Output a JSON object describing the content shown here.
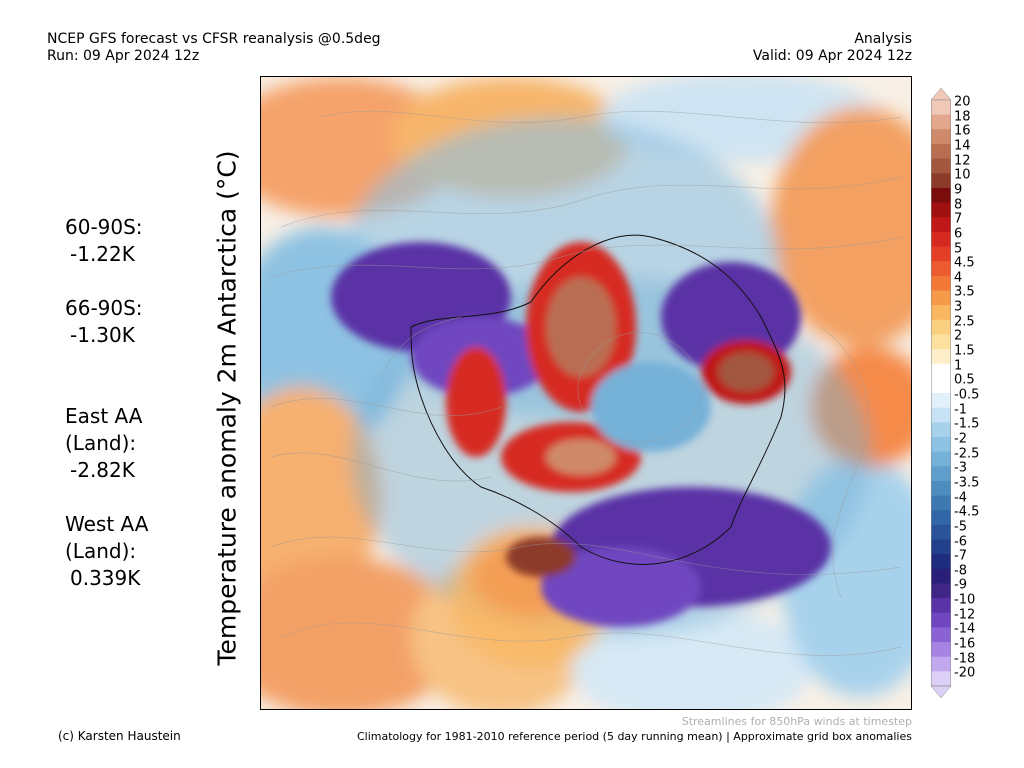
{
  "header": {
    "title": "NCEP GFS forecast vs CFSR reanalysis @0.5deg",
    "run": "Run: 09 Apr 2024 12z",
    "kind": "Analysis",
    "valid": "Valid: 09 Apr 2024 12z"
  },
  "vertical_title": "Temperature anomaly 2m Antarctica (°C)",
  "stats": [
    {
      "label": "60-90S:",
      "value": "-1.22K"
    },
    {
      "label": "66-90S:",
      "value": "-1.30K"
    },
    {
      "label": "East AA\n(Land):",
      "value": "-2.82K"
    },
    {
      "label": "West AA\n(Land):",
      "value": "0.339K"
    }
  ],
  "colorbar": {
    "labels": [
      "20",
      "18",
      "16",
      "14",
      "12",
      "10",
      "9",
      "8",
      "7",
      "6",
      "5",
      "4.5",
      "4",
      "3.5",
      "3",
      "2.5",
      "2",
      "1.5",
      "1",
      "0.5",
      "-0.5",
      "-1",
      "-1.5",
      "-2",
      "-2.5",
      "-3",
      "-3.5",
      "-4",
      "-4.5",
      "-5",
      "-6",
      "-7",
      "-8",
      "-9",
      "-10",
      "-12",
      "-14",
      "-16",
      "-18",
      "-20"
    ],
    "colors": [
      "#f0c8b8",
      "#e2a78c",
      "#cf8a6b",
      "#b96e52",
      "#a3573f",
      "#8c3b2a",
      "#7a0c0c",
      "#a01010",
      "#c01818",
      "#d62a20",
      "#e23e28",
      "#ec5a30",
      "#f27838",
      "#f59a48",
      "#f9b760",
      "#fbcf80",
      "#fce0a0",
      "#fdedc8",
      "#ffffff",
      "#ffffff",
      "#e2f0fa",
      "#c6e2f4",
      "#a8d2ec",
      "#8ec2e2",
      "#76b1d8",
      "#609fcc",
      "#4d8cbf",
      "#3f79b2",
      "#3366a6",
      "#2a539a",
      "#23408c",
      "#1e2d7e",
      "#2a1f78",
      "#3f2586",
      "#5a33a6",
      "#7046c0",
      "#8a62d4",
      "#a584e2",
      "#c2a9ee",
      "#dcd0f7"
    ]
  },
  "map": {
    "streamlines_note": "Streamlines for 850hPa winds at timestep"
  },
  "footer": {
    "credit": "(c) Karsten Haustein",
    "note": "Climatology for 1981-2010 reference period (5 day running mean) | Approximate grid box anomalies"
  }
}
